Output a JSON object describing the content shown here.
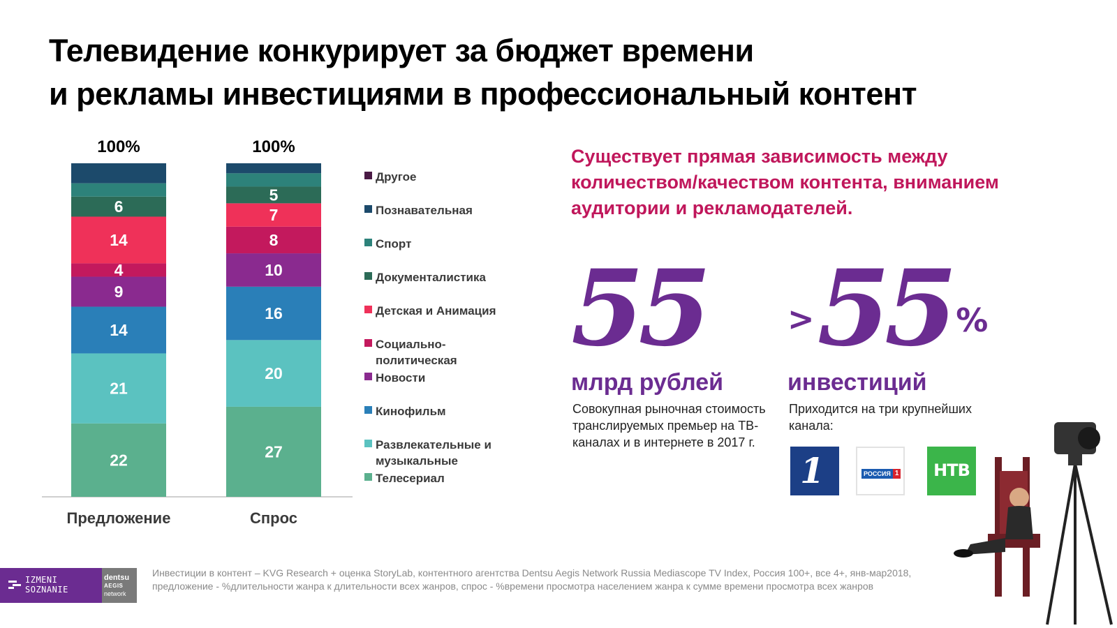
{
  "title": {
    "line1": "Телевидение конкурирует за бюджет времени",
    "line2": "и рекламы инвестициями в профессиональный контент"
  },
  "chart_data": {
    "type": "bar",
    "stacked": true,
    "categories": [
      "Предложение",
      "Спрос"
    ],
    "totals": [
      "100%",
      "100%"
    ],
    "series": [
      {
        "name": "Телесериал",
        "color": "#5bb08e",
        "values": [
          22,
          27
        ],
        "labels": [
          "22",
          "27"
        ]
      },
      {
        "name": "Развлекательные и музыкальные",
        "color": "#5bc2c0",
        "values": [
          21,
          20
        ],
        "labels": [
          "21",
          "20"
        ]
      },
      {
        "name": "Кинофильм",
        "color": "#2a7fb8",
        "values": [
          14,
          16
        ],
        "labels": [
          "14",
          "16"
        ]
      },
      {
        "name": "Новости",
        "color": "#8a2a8f",
        "values": [
          9,
          10
        ],
        "labels": [
          "9",
          "10"
        ]
      },
      {
        "name": "Социально-политическая",
        "color": "#c3195d",
        "values": [
          4,
          8
        ],
        "labels": [
          "4",
          "8"
        ]
      },
      {
        "name": "Детская и Анимация",
        "color": "#ef3159",
        "values": [
          14,
          7
        ],
        "labels": [
          "14",
          "7"
        ]
      },
      {
        "name": "Документалистика",
        "color": "#2c6b57",
        "values": [
          6,
          5
        ],
        "labels": [
          "6",
          "5"
        ]
      },
      {
        "name": "Спорт",
        "color": "#2d827a",
        "values": [
          4,
          4
        ],
        "labels": [
          "",
          ""
        ]
      },
      {
        "name": "Познавательная",
        "color": "#1c4a6b",
        "values": [
          6,
          3
        ],
        "labels": [
          "",
          ""
        ]
      },
      {
        "name": "Другое",
        "color": "#4a1a45",
        "values": [
          0,
          0
        ],
        "labels": [
          "",
          ""
        ]
      }
    ],
    "ylim": [
      0,
      100
    ],
    "grid": false,
    "legend_position": "right"
  },
  "legend": [
    {
      "label": "Другое",
      "color": "#4a1a45"
    },
    {
      "label": "Познавательная",
      "color": "#1c4a6b"
    },
    {
      "label": "Спорт",
      "color": "#2d827a"
    },
    {
      "label": "Документалистика",
      "color": "#2c6b57"
    },
    {
      "label": "Детская и Анимация",
      "color": "#ef3159"
    },
    {
      "label": "Социально-политическая",
      "color": "#c3195d"
    },
    {
      "label": "Новости",
      "color": "#8a2a8f"
    },
    {
      "label": "Кинофильм",
      "color": "#2a7fb8"
    },
    {
      "label": "Развлекательные и музыкальные",
      "color": "#5bc2c0"
    },
    {
      "label": "Телесериал",
      "color": "#5bb08e"
    }
  ],
  "headline": "Существует прямая зависимость между количеством/качеством контента, вниманием аудитории и рекламодателей.",
  "stat1": {
    "number": "55",
    "unit": "млрд рублей",
    "description": "Совокупная рыночная стоимость транслируемых премьер на ТВ-каналах и в интернете в 2017 г."
  },
  "stat2": {
    "prefix": ">",
    "number": "55",
    "suffix": "%",
    "unit": "инвестиций",
    "description": "Приходится на три крупнейших канала:"
  },
  "channels": {
    "perviy_symbol": "1",
    "rossiya_text": "РОССИЯ",
    "rossiya_num": "1",
    "ntv_text": "НТВ"
  },
  "footer": {
    "brand_line1": "IZMENI",
    "brand_line2": "SOZNANIE",
    "partner_line1": "dentsu",
    "partner_line2": "AEGIS",
    "partner_line3": "network",
    "sources": "Инвестиции в контент – KVG Research + оценка StoryLab, контентного агентства Dentsu Aegis Network Russia Mediascope TV Index, Россия 100+, все 4+, янв-мар2018, предложение - %длительности жанра к длительности всех жанров,  спрос - %времени просмотра населением жанра к сумме времени просмотра всех жанров"
  },
  "colors": {
    "accent_purple": "#6b2c91",
    "accent_crimson": "#c0175b"
  }
}
